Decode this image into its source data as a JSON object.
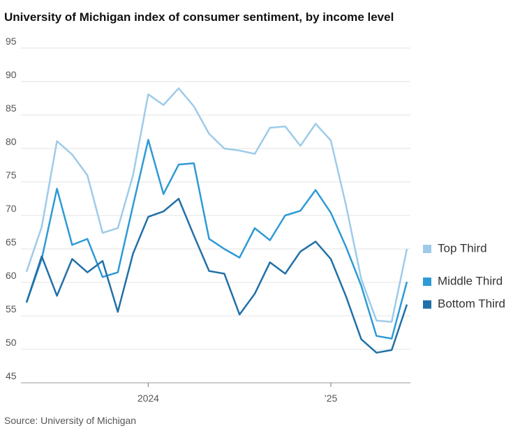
{
  "chart_data": {
    "type": "line",
    "title": "University of Michigan index of consumer sentiment, by income level",
    "source": "Source: University of Michigan",
    "categories": [
      null,
      null,
      null,
      null,
      null,
      null,
      null,
      null,
      "2024",
      null,
      null,
      null,
      null,
      null,
      null,
      null,
      null,
      null,
      null,
      null,
      "’25",
      null,
      null,
      null,
      null,
      null
    ],
    "series": [
      {
        "name": "Top Third",
        "color": "#9ecbe9",
        "values": [
          61.6,
          68.3,
          81.1,
          79.1,
          76,
          67.4,
          68.1,
          76,
          88.1,
          86.5,
          89,
          86.3,
          82.2,
          80,
          79.7,
          79.2,
          83.1,
          83.3,
          80.4,
          83.7,
          81.2,
          71.5,
          60.5,
          54.3,
          54.1,
          65
        ]
      },
      {
        "name": "Middle Third",
        "color": "#2e9ad6",
        "values": [
          57,
          63.5,
          74,
          65.6,
          66.5,
          60.8,
          61.5,
          71.5,
          81.3,
          73.2,
          77.6,
          77.8,
          66.5,
          65,
          63.7,
          68.1,
          66.3,
          70,
          70.7,
          73.8,
          70.4,
          65.3,
          59.5,
          52,
          51.6,
          60.1
        ]
      },
      {
        "name": "Bottom Third",
        "color": "#2170a8",
        "values": [
          57,
          63.9,
          58,
          63.5,
          61.5,
          63.2,
          55.6,
          64.3,
          69.8,
          70.6,
          72.5,
          67,
          61.7,
          61.3,
          55.2,
          58.3,
          63,
          61.3,
          64.6,
          66.1,
          63.5,
          57.9,
          51.5,
          49.5,
          49.9,
          56.7
        ]
      }
    ],
    "ylim": [
      45,
      95
    ],
    "yticks": [
      45,
      50,
      55,
      60,
      65,
      70,
      75,
      80,
      85,
      90,
      95
    ],
    "grid": true
  }
}
